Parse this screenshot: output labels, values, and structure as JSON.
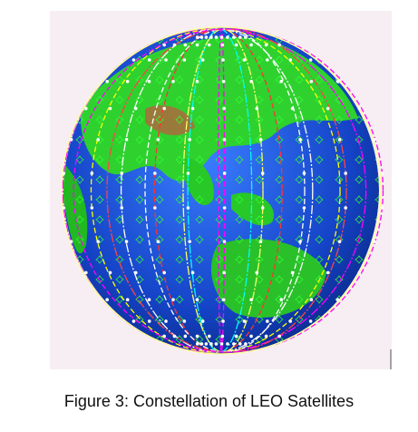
{
  "figure": {
    "caption": "Figure 3: Constellation of LEO Satellites"
  }
}
